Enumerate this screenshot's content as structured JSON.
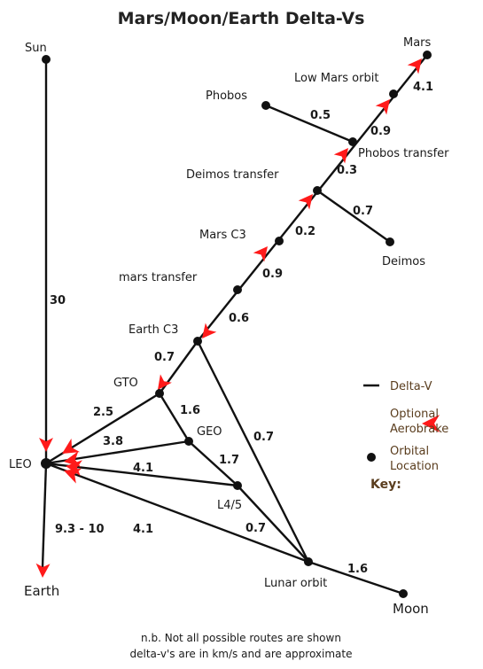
{
  "title": "Mars/Moon/Earth Delta-Vs",
  "nodes": {
    "sun": "Sun",
    "mars": "Mars",
    "low_mars_orbit": "Low Mars orbit",
    "phobos": "Phobos",
    "phobos_transfer": "Phobos transfer",
    "deimos_transfer": "Deimos transfer",
    "deimos": "Deimos",
    "mars_c3": "Mars C3",
    "mars_transfer": "mars transfer",
    "earth_c3": "Earth C3",
    "gto": "GTO",
    "geo": "GEO",
    "leo": "LEO",
    "l4_5": "L4/5",
    "lunar_orbit": "Lunar orbit",
    "moon": "Moon",
    "earth": "Earth"
  },
  "edges": {
    "sun_leo": "30",
    "mars_lmo": "4.1",
    "phobos_pt": "0.5",
    "lmo_pt": "0.9",
    "pt_dt": "0.3",
    "dt_deimos": "0.7",
    "dt_mc3": "0.2",
    "mc3_mt": "0.9",
    "mt_ec3": "0.6",
    "ec3_gto": "0.7",
    "gto_geo": "1.6",
    "ec3_lunar": "0.7",
    "gto_leo": "2.5",
    "geo_leo": "3.8",
    "geo_l45": "1.7",
    "l45_leo": "4.1",
    "l45_lunar": "0.7",
    "lunar_leo": "4.1",
    "lunar_moon": "1.6",
    "leo_earth": "9.3 - 10"
  },
  "key": {
    "heading": "Key:",
    "delta_v": "Delta-V",
    "aerobrake_1": "Optional",
    "aerobrake_2": "Aerobrake",
    "orbital_1": "Orbital",
    "orbital_2": "Location"
  },
  "notes": {
    "line1": "n.b. Not all possible routes are shown",
    "line2": "delta-v's are in km/s and are approximate"
  },
  "colors": {
    "edge": "#111111",
    "aerobrake_arrow": "#ff1a1a",
    "key_text": "#5a3d1e"
  }
}
